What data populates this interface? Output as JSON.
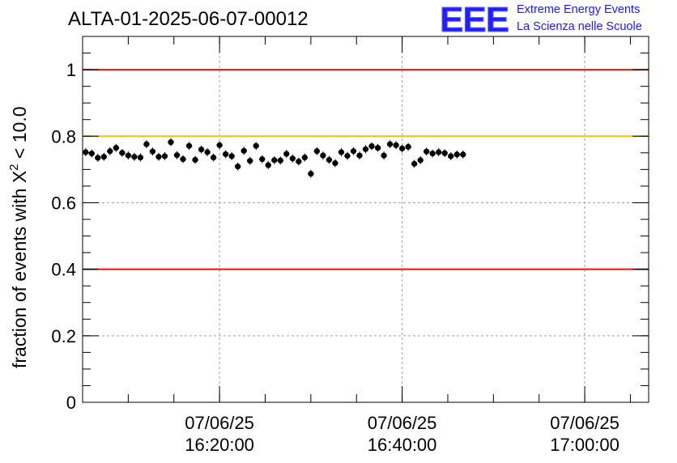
{
  "header": {
    "title": "ALTA-01-2025-06-07-00012",
    "logo_mark": "EEE",
    "logo_line1": "Extreme Energy Events",
    "logo_line2": "La Scienza nelle Scuole"
  },
  "colors": {
    "logo_blue": "#1f1fff",
    "limit_red": "#e8120c",
    "target_yellow": "#ffbf00",
    "points": "#000000",
    "grid": "#a0a0a0"
  },
  "chart_data": {
    "type": "scatter",
    "title": "ALTA-01-2025-06-07-00012",
    "xlabel": "",
    "ylabel_text": "fraction of events with X",
    "ylabel_sup": "2",
    "ylabel_suffix": " < 10.0",
    "x_time_range": [
      "2025-06-07 16:05:00",
      "2025-06-07 17:07:00"
    ],
    "ylim": [
      0,
      1.1
    ],
    "y_ticks": [
      0,
      0.2,
      0.4,
      0.6,
      0.8,
      1
    ],
    "y_tick_labels": [
      "0",
      "0.2",
      "0.4",
      "0.6",
      "0.8",
      "1"
    ],
    "x_ticks": [
      {
        "t": "2025-06-07 16:20:00",
        "date": "07/06/25",
        "time": "16:20:00"
      },
      {
        "t": "2025-06-07 16:40:00",
        "date": "07/06/25",
        "time": "16:40:00"
      },
      {
        "t": "2025-06-07 17:00:00",
        "date": "07/06/25",
        "time": "17:00:00"
      }
    ],
    "minor_tick_minutes": 5,
    "grid": true,
    "reference_lines": [
      {
        "y": 1.0,
        "color": "#e8120c"
      },
      {
        "y": 0.8,
        "color": "#ffbf00"
      },
      {
        "y": 0.4,
        "color": "#e8120c"
      }
    ],
    "t_start": "2025-06-07 16:05:00",
    "t_step_seconds": 40,
    "y_error": 0.012,
    "values": [
      0.752,
      0.748,
      0.735,
      0.738,
      0.755,
      0.765,
      0.75,
      0.742,
      0.738,
      0.736,
      0.776,
      0.754,
      0.738,
      0.74,
      0.782,
      0.743,
      0.731,
      0.771,
      0.729,
      0.76,
      0.752,
      0.736,
      0.773,
      0.746,
      0.74,
      0.709,
      0.756,
      0.726,
      0.771,
      0.731,
      0.713,
      0.728,
      0.727,
      0.747,
      0.733,
      0.724,
      0.736,
      0.687,
      0.755,
      0.742,
      0.729,
      0.719,
      0.752,
      0.741,
      0.755,
      0.742,
      0.761,
      0.77,
      0.765,
      0.742,
      0.776,
      0.773,
      0.763,
      0.768,
      0.717,
      0.728,
      0.754,
      0.748,
      0.752,
      0.749,
      0.74,
      0.745,
      0.745
    ]
  }
}
